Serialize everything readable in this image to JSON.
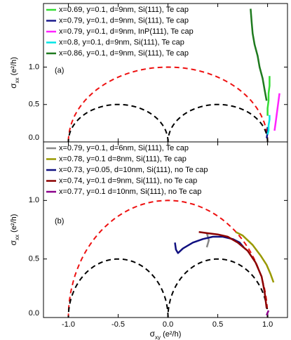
{
  "chart_data": [
    {
      "type": "line",
      "panel_label": "(a)",
      "y_label": {
        "symbol": "σ",
        "subscript": "xx",
        "unit": " (e²/h)"
      },
      "xlim": [
        -1.25,
        1.2
      ],
      "ylim": [
        0,
        1.85
      ],
      "xticks": [
        -1,
        -0.5,
        0,
        0.5,
        1
      ],
      "yticks": [
        {
          "value": 0,
          "label": "0.0"
        },
        {
          "value": 0.5,
          "label": "0.5"
        },
        {
          "value": 1,
          "label": "1.0"
        }
      ],
      "legend": "upper left",
      "grid": false,
      "reference_circles": [
        {
          "center": 0,
          "radius": 1,
          "color": "#ee1111"
        },
        {
          "center": -0.5,
          "radius": 0.5,
          "color": "#000000"
        },
        {
          "center": 0.5,
          "radius": 0.5,
          "color": "#000000"
        }
      ],
      "series": [
        {
          "name": "x=0.69, y=0.1, d=9nm, Si(111), Te cap",
          "color": "#33dd33",
          "x": [
            1.0,
            1.0,
            1.01,
            1.01,
            1.02,
            1.02,
            1.02
          ],
          "values": [
            0.35,
            0.45,
            0.55,
            0.65,
            0.75,
            0.82,
            0.88
          ]
        },
        {
          "name": "x=0.79, y=0.1, d=9nm, Si(111), Te cap",
          "color": "#1a1a8c",
          "x": [
            0.99,
            1.0,
            1.0
          ],
          "values": [
            0.05,
            0.12,
            0.2
          ]
        },
        {
          "name": "x=0.79, y=0.1, d=9nm, InP(111), Te cap",
          "color": "#ff22ff",
          "x": [
            1.07,
            1.08,
            1.09,
            1.1,
            1.11,
            1.12
          ],
          "values": [
            0.15,
            0.25,
            0.35,
            0.45,
            0.55,
            0.65
          ]
        },
        {
          "name": "x=0.8, y=0.1, d=9nm, Si(111), Te cap",
          "color": "#00e5e5",
          "x": [
            1.0,
            1.01,
            1.01,
            1.02,
            1.02
          ],
          "values": [
            0.1,
            0.15,
            0.22,
            0.3,
            0.36
          ]
        },
        {
          "name": "x=0.86, y=0.1, d=9nm, Si(111), Te cap",
          "color": "#1e7a1e",
          "x": [
            0.83,
            0.84,
            0.85,
            0.87,
            0.9,
            0.92,
            0.95,
            0.97,
            0.99
          ],
          "values": [
            1.78,
            1.6,
            1.45,
            1.3,
            1.15,
            1.0,
            0.85,
            0.7,
            0.55
          ]
        }
      ]
    },
    {
      "type": "line",
      "panel_label": "(b)",
      "y_label": {
        "symbol": "σ",
        "subscript": "xx",
        "unit": " (e²/h)"
      },
      "x_label": {
        "symbol": "σ",
        "subscript": "xy",
        "unit": " (e²/h)"
      },
      "xlim": [
        -1.25,
        1.2
      ],
      "ylim": [
        0,
        1.5
      ],
      "xticks": [
        {
          "value": -1,
          "label": "-1.0"
        },
        {
          "value": -0.5,
          "label": "-0.5"
        },
        {
          "value": 0,
          "label": "0.0"
        },
        {
          "value": 0.5,
          "label": "0.5"
        },
        {
          "value": 1,
          "label": "1.0"
        }
      ],
      "yticks": [
        {
          "value": 0,
          "label": "0.0"
        },
        {
          "value": 0.5,
          "label": "0.5"
        },
        {
          "value": 1,
          "label": "1.0"
        }
      ],
      "legend": "upper left",
      "grid": false,
      "reference_circles": [
        {
          "center": 0,
          "radius": 1,
          "color": "#ee1111"
        },
        {
          "center": -0.5,
          "radius": 0.5,
          "color": "#000000"
        },
        {
          "center": 0.5,
          "radius": 0.5,
          "color": "#000000"
        }
      ],
      "series": [
        {
          "name": "x=0.79, y=0.1, d=6nm, Si(111), Te cap",
          "color": "#888888",
          "x": [
            0.39,
            0.4,
            0.41,
            0.4,
            0.39,
            0.4
          ],
          "values": [
            0.6,
            0.63,
            0.66,
            0.69,
            0.72,
            0.7
          ]
        },
        {
          "name": "x=0.78, y=0.1 d=8nm, Si(111), Te cap",
          "color": "#999900",
          "x": [
            0.68,
            0.75,
            0.85,
            0.93,
            0.99,
            1.03,
            1.06
          ],
          "values": [
            0.73,
            0.7,
            0.62,
            0.53,
            0.45,
            0.37,
            0.3
          ]
        },
        {
          "name": "x=0.73, y=0.05, d=10nm, Si(111), no Te cap",
          "color": "#101080",
          "x": [
            0.07,
            0.08,
            0.1,
            0.15,
            0.25,
            0.35,
            0.45,
            0.55,
            0.65,
            0.72,
            0.76
          ],
          "values": [
            0.64,
            0.58,
            0.55,
            0.59,
            0.64,
            0.67,
            0.69,
            0.69,
            0.67,
            0.64,
            0.6
          ]
        },
        {
          "name": "x=0.74, y=0.1 d=9nm, Si(111), no Te cap",
          "color": "#8b0000",
          "x": [
            0.31,
            0.4,
            0.5,
            0.6,
            0.7,
            0.8,
            0.88,
            0.94,
            0.97,
            0.99
          ],
          "values": [
            0.73,
            0.72,
            0.71,
            0.69,
            0.64,
            0.57,
            0.47,
            0.35,
            0.22,
            0.08
          ]
        },
        {
          "name": "x=0.77, y=0.1 d=10nm, Si(111), no Te cap",
          "color": "#8b008b",
          "x": [
            0.99,
            1.0,
            1.01
          ],
          "values": [
            0.02,
            0.04,
            0.06
          ]
        }
      ]
    }
  ]
}
